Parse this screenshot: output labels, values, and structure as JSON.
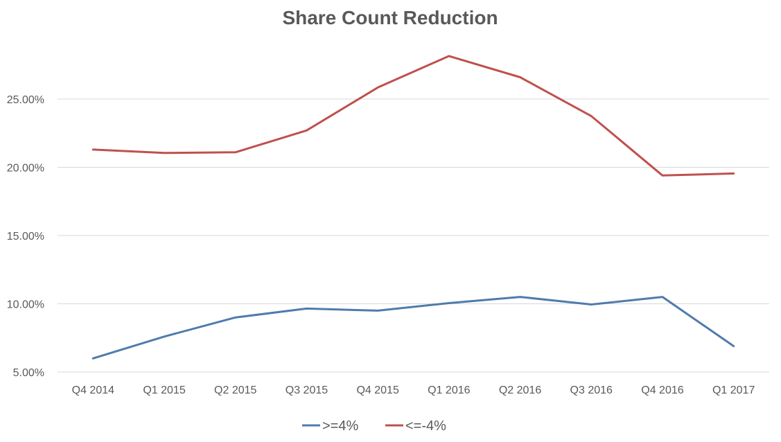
{
  "chart_data": {
    "type": "line",
    "title": "Share Count Reduction",
    "xlabel": "",
    "ylabel": "",
    "categories": [
      "Q4 2014",
      "Q1 2015",
      "Q2 2015",
      "Q3 2015",
      "Q4 2015",
      "Q1 2016",
      "Q2 2016",
      "Q3 2016",
      "Q4 2016",
      "Q1 2017"
    ],
    "yticks": [
      5,
      10,
      15,
      20,
      25
    ],
    "ytick_labels": [
      "5.00%",
      "10.00%",
      "15.00%",
      "20.00%",
      "25.00%"
    ],
    "ylim": [
      5,
      29.5
    ],
    "grid": true,
    "legend_position": "bottom",
    "series": [
      {
        "name": ">=4%",
        "color": "#4f7bac",
        "values": [
          6.0,
          7.6,
          9.0,
          9.65,
          9.5,
          10.05,
          10.5,
          9.95,
          10.5,
          6.9
        ]
      },
      {
        "name": "<=-4%",
        "color": "#bf504d",
        "values": [
          21.3,
          21.05,
          21.1,
          22.7,
          25.85,
          28.15,
          26.6,
          23.75,
          19.4,
          19.55
        ]
      }
    ]
  }
}
